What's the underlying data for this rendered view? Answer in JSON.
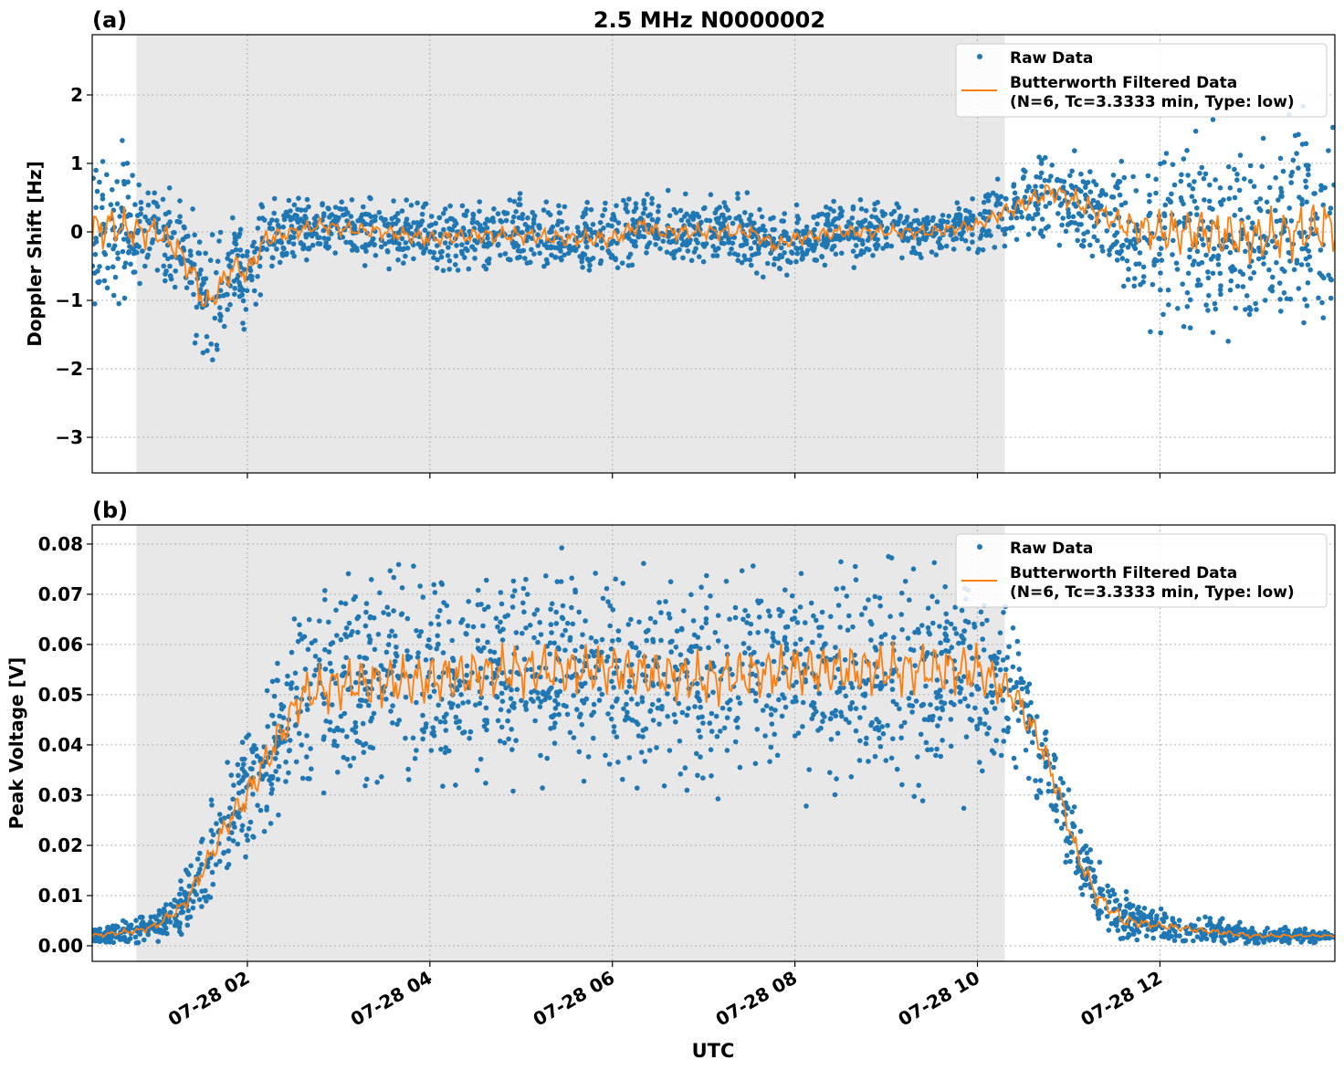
{
  "title": "2.5 MHz N0000002",
  "colors": {
    "raw": "#1f77b4",
    "filtered": "#ff7f0e",
    "shade": "#e8e8e8"
  },
  "legend": {
    "raw": "Raw Data",
    "filtered_line1": "Butterworth Filtered Data",
    "filtered_line2": "(N=6, Tc=3.3333 min, Type: low)",
    "placement": "top-right"
  },
  "xlabel": "UTC",
  "chart_data": [
    {
      "type": "scatter+line",
      "panel_label": "(a)",
      "ylabel": "Doppler Shift [Hz]",
      "xlim": [
        "07-28 00:18",
        "07-28 13:55"
      ],
      "ylim": [
        -3.52,
        2.88
      ],
      "grid": true,
      "shaded_x_range": [
        "07-28 00:47",
        "07-28 10:18"
      ],
      "x_ticks": [
        "07-28 02",
        "07-28 04",
        "07-28 06",
        "07-28 08",
        "07-28 10",
        "07-28 12"
      ],
      "y_ticks": [
        "2",
        "1",
        "0",
        "−1",
        "−2",
        "−3"
      ],
      "y_tick_values": [
        2,
        1,
        0,
        -1,
        -2,
        -3
      ],
      "filtered": {
        "x": [
          "07-28 00:18",
          "07-28 00:30",
          "07-28 00:48",
          "07-28 01:00",
          "07-28 01:12",
          "07-28 01:24",
          "07-28 01:33",
          "07-28 01:42",
          "07-28 01:51",
          "07-28 02:00",
          "07-28 02:12",
          "07-28 02:30",
          "07-28 02:48",
          "07-28 03:00",
          "07-28 03:30",
          "07-28 04:00",
          "07-28 04:30",
          "07-28 05:00",
          "07-28 05:30",
          "07-28 06:00",
          "07-28 06:18",
          "07-28 06:30",
          "07-28 07:00",
          "07-28 07:30",
          "07-28 07:48",
          "07-28 08:00",
          "07-28 08:30",
          "07-28 09:00",
          "07-28 09:30",
          "07-28 10:00",
          "07-28 10:18",
          "07-28 10:30",
          "07-28 10:48",
          "07-28 11:00",
          "07-28 11:18",
          "07-28 11:36",
          "07-28 12:00",
          "07-28 12:30",
          "07-28 13:00",
          "07-28 13:30",
          "07-28 13:55"
        ],
        "y": [
          0,
          0.1,
          0,
          0,
          -0.2,
          -0.6,
          -1.1,
          -0.8,
          -0.5,
          -0.6,
          -0.1,
          0,
          0.1,
          0.05,
          0,
          -0.1,
          -0.05,
          -0.05,
          -0.1,
          -0.1,
          0.1,
          0,
          0,
          0,
          -0.2,
          -0.1,
          0,
          0,
          0,
          0.1,
          0.3,
          0.4,
          0.6,
          0.5,
          0.3,
          0.1,
          0,
          0,
          -0.1,
          0,
          0.1
        ]
      },
      "raw_spread": {
        "x": [
          "07-28 00:18",
          "07-28 01:00",
          "07-28 01:30",
          "07-28 02:00",
          "07-28 02:30",
          "07-28 06:00",
          "07-28 10:00",
          "07-28 10:30",
          "07-28 11:30",
          "07-28 12:00",
          "07-28 13:55"
        ],
        "half_width": [
          0.9,
          0.6,
          0.6,
          0.5,
          0.3,
          0.35,
          0.25,
          0.4,
          0.5,
          0.9,
          1.1
        ]
      }
    },
    {
      "type": "scatter+line",
      "panel_label": "(b)",
      "ylabel": "Peak Voltage [V]",
      "xlim": [
        "07-28 00:18",
        "07-28 13:55"
      ],
      "ylim": [
        -0.0031,
        0.0838
      ],
      "grid": true,
      "shaded_x_range": [
        "07-28 00:47",
        "07-28 10:18"
      ],
      "x_ticks": [
        "07-28 02",
        "07-28 04",
        "07-28 06",
        "07-28 08",
        "07-28 10",
        "07-28 12"
      ],
      "y_ticks": [
        "0.08",
        "0.07",
        "0.06",
        "0.05",
        "0.04",
        "0.03",
        "0.02",
        "0.01",
        "0.00"
      ],
      "y_tick_values": [
        0.08,
        0.07,
        0.06,
        0.05,
        0.04,
        0.03,
        0.02,
        0.01,
        0
      ],
      "filtered": {
        "x": [
          "07-28 00:18",
          "07-28 00:48",
          "07-28 01:00",
          "07-28 01:18",
          "07-28 01:36",
          "07-28 01:48",
          "07-28 02:00",
          "07-28 02:18",
          "07-28 02:36",
          "07-28 03:00",
          "07-28 04:00",
          "07-28 05:00",
          "07-28 06:00",
          "07-28 07:00",
          "07-28 08:00",
          "07-28 09:00",
          "07-28 10:00",
          "07-28 10:24",
          "07-28 10:42",
          "07-28 10:54",
          "07-28 11:06",
          "07-28 11:18",
          "07-28 11:36",
          "07-28 12:00",
          "07-28 12:30",
          "07-28 13:00",
          "07-28 13:55"
        ],
        "y": [
          0.002,
          0.003,
          0.004,
          0.008,
          0.018,
          0.025,
          0.03,
          0.04,
          0.05,
          0.052,
          0.053,
          0.055,
          0.055,
          0.053,
          0.055,
          0.055,
          0.055,
          0.05,
          0.04,
          0.03,
          0.018,
          0.01,
          0.005,
          0.004,
          0.003,
          0.002,
          0.002
        ]
      },
      "raw_spread": {
        "x": [
          "07-28 00:18",
          "07-28 01:00",
          "07-28 02:00",
          "07-28 03:00",
          "07-28 10:00",
          "07-28 11:00",
          "07-28 12:00",
          "07-28 13:55"
        ],
        "half_width": [
          0.0012,
          0.002,
          0.009,
          0.014,
          0.014,
          0.006,
          0.002,
          0.0006
        ]
      }
    }
  ]
}
